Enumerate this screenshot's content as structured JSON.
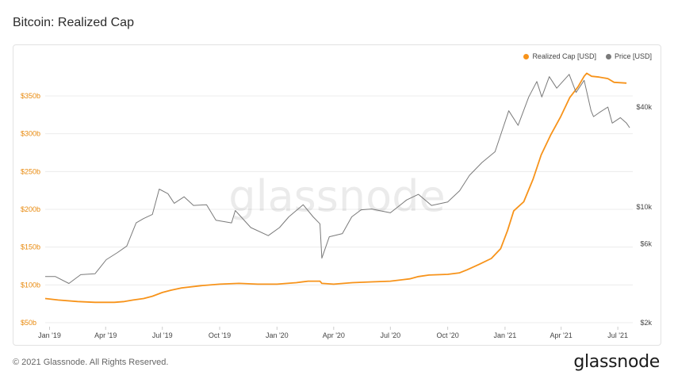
{
  "title": "Bitcoin: Realized Cap",
  "footer": {
    "copyright": "© 2021 Glassnode. All Rights Reserved.",
    "logo": "glassnode"
  },
  "watermark": "glassnode",
  "colors": {
    "realized": "#f7931a",
    "price": "#7a7a7a",
    "grid": "#ececec",
    "left_axis": "#e8890c"
  },
  "chart_data": {
    "type": "line",
    "title": "Bitcoin: Realized Cap",
    "x_ticks": [
      "Jan '19",
      "Apr '19",
      "Jul '19",
      "Oct '19",
      "Jan '20",
      "Apr '20",
      "Jul '20",
      "Oct '20",
      "Jan '21",
      "Apr '21",
      "Jul '21"
    ],
    "y_left": {
      "ticks": [
        "$50b",
        "$100b",
        "$150b",
        "$200b",
        "$250b",
        "$300b",
        "$350b"
      ],
      "range": [
        50,
        400
      ],
      "unit": "USD billions"
    },
    "y_right": {
      "ticks": [
        "$2k",
        "$6k",
        "$10k",
        "$40k"
      ],
      "scale": "log",
      "unit": "USD"
    },
    "legend": {
      "position": "top-right",
      "entries": [
        "Realized Cap [USD]",
        "Price [USD]"
      ]
    },
    "grid": true,
    "series": [
      {
        "name": "Realized Cap [USD]",
        "color": "#f7931a",
        "axis": "left",
        "points": [
          [
            "2018-12-25",
            82
          ],
          [
            "2019-01-15",
            80
          ],
          [
            "2019-02-15",
            78
          ],
          [
            "2019-03-15",
            77
          ],
          [
            "2019-04-15",
            77
          ],
          [
            "2019-05-01",
            78
          ],
          [
            "2019-05-15",
            80
          ],
          [
            "2019-06-01",
            82
          ],
          [
            "2019-06-15",
            85
          ],
          [
            "2019-07-01",
            90
          ],
          [
            "2019-07-15",
            93
          ],
          [
            "2019-08-01",
            96
          ],
          [
            "2019-09-01",
            99
          ],
          [
            "2019-10-01",
            101
          ],
          [
            "2019-11-01",
            102
          ],
          [
            "2019-12-01",
            101
          ],
          [
            "2020-01-01",
            101
          ],
          [
            "2020-02-01",
            103
          ],
          [
            "2020-02-20",
            105
          ],
          [
            "2020-03-10",
            105
          ],
          [
            "2020-03-13",
            102
          ],
          [
            "2020-04-01",
            101
          ],
          [
            "2020-05-01",
            103
          ],
          [
            "2020-06-01",
            104
          ],
          [
            "2020-07-01",
            105
          ],
          [
            "2020-08-01",
            108
          ],
          [
            "2020-08-15",
            111
          ],
          [
            "2020-09-01",
            113
          ],
          [
            "2020-10-01",
            114
          ],
          [
            "2020-10-20",
            116
          ],
          [
            "2020-11-01",
            120
          ],
          [
            "2020-11-20",
            127
          ],
          [
            "2020-12-10",
            135
          ],
          [
            "2020-12-25",
            148
          ],
          [
            "2021-01-05",
            172
          ],
          [
            "2021-01-15",
            198
          ],
          [
            "2021-01-31",
            210
          ],
          [
            "2021-02-15",
            240
          ],
          [
            "2021-02-28",
            272
          ],
          [
            "2021-03-15",
            298
          ],
          [
            "2021-03-31",
            322
          ],
          [
            "2021-04-15",
            348
          ],
          [
            "2021-04-28",
            362
          ],
          [
            "2021-05-08",
            376
          ],
          [
            "2021-05-12",
            380
          ],
          [
            "2021-05-20",
            376
          ],
          [
            "2021-06-01",
            375
          ],
          [
            "2021-06-15",
            373
          ],
          [
            "2021-06-25",
            368
          ],
          [
            "2021-07-15",
            367
          ]
        ]
      },
      {
        "name": "Price [USD]",
        "color": "#7a7a7a",
        "axis": "right",
        "points": [
          [
            "2018-12-25",
            3800
          ],
          [
            "2019-01-10",
            3800
          ],
          [
            "2019-02-01",
            3450
          ],
          [
            "2019-02-20",
            3900
          ],
          [
            "2019-03-15",
            3950
          ],
          [
            "2019-04-02",
            4800
          ],
          [
            "2019-04-20",
            5300
          ],
          [
            "2019-05-05",
            5800
          ],
          [
            "2019-05-20",
            8000
          ],
          [
            "2019-06-01",
            8500
          ],
          [
            "2019-06-15",
            9000
          ],
          [
            "2019-06-26",
            12800
          ],
          [
            "2019-07-10",
            12000
          ],
          [
            "2019-07-20",
            10500
          ],
          [
            "2019-08-05",
            11500
          ],
          [
            "2019-08-20",
            10200
          ],
          [
            "2019-09-10",
            10300
          ],
          [
            "2019-09-25",
            8300
          ],
          [
            "2019-10-20",
            8000
          ],
          [
            "2019-10-26",
            9500
          ],
          [
            "2019-11-20",
            7500
          ],
          [
            "2019-12-18",
            6700
          ],
          [
            "2020-01-05",
            7500
          ],
          [
            "2020-01-20",
            8700
          ],
          [
            "2020-02-12",
            10300
          ],
          [
            "2020-02-28",
            8700
          ],
          [
            "2020-03-10",
            7900
          ],
          [
            "2020-03-13",
            4900
          ],
          [
            "2020-03-25",
            6600
          ],
          [
            "2020-04-15",
            6900
          ],
          [
            "2020-04-30",
            8700
          ],
          [
            "2020-05-15",
            9600
          ],
          [
            "2020-06-01",
            9700
          ],
          [
            "2020-07-01",
            9200
          ],
          [
            "2020-07-27",
            11000
          ],
          [
            "2020-08-15",
            11900
          ],
          [
            "2020-09-05",
            10200
          ],
          [
            "2020-10-01",
            10700
          ],
          [
            "2020-10-20",
            12500
          ],
          [
            "2020-11-05",
            15500
          ],
          [
            "2020-11-25",
            18500
          ],
          [
            "2020-12-16",
            21500
          ],
          [
            "2021-01-07",
            38000
          ],
          [
            "2021-01-22",
            31000
          ],
          [
            "2021-02-08",
            46000
          ],
          [
            "2021-02-21",
            57000
          ],
          [
            "2021-03-01",
            46000
          ],
          [
            "2021-03-13",
            61000
          ],
          [
            "2021-03-25",
            52000
          ],
          [
            "2021-04-14",
            63000
          ],
          [
            "2021-04-25",
            49000
          ],
          [
            "2021-05-08",
            58000
          ],
          [
            "2021-05-19",
            38000
          ],
          [
            "2021-05-23",
            35000
          ],
          [
            "2021-06-01",
            37000
          ],
          [
            "2021-06-15",
            40000
          ],
          [
            "2021-06-22",
            32000
          ],
          [
            "2021-07-05",
            34500
          ],
          [
            "2021-07-15",
            32000
          ],
          [
            "2021-07-20",
            30000
          ]
        ]
      }
    ]
  }
}
